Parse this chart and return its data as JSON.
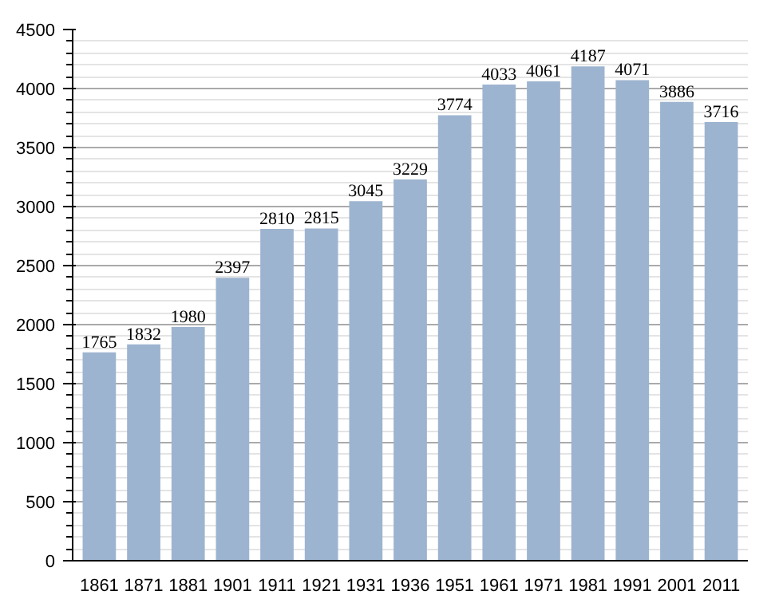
{
  "chart_data": {
    "type": "bar",
    "categories": [
      "1861",
      "1871",
      "1881",
      "1901",
      "1911",
      "1921",
      "1931",
      "1936",
      "1951",
      "1961",
      "1971",
      "1981",
      "1991",
      "2001",
      "2011"
    ],
    "values": [
      1765,
      1832,
      1980,
      2397,
      2810,
      2815,
      3045,
      3229,
      3774,
      4033,
      4061,
      4187,
      4071,
      3886,
      3716
    ],
    "color": "#9db4d0",
    "ylim": [
      0,
      4500
    ],
    "yticks": [
      0,
      500,
      1000,
      1500,
      2000,
      2500,
      3000,
      3500,
      4000,
      4500
    ],
    "grid": "y",
    "data_labels": true
  }
}
